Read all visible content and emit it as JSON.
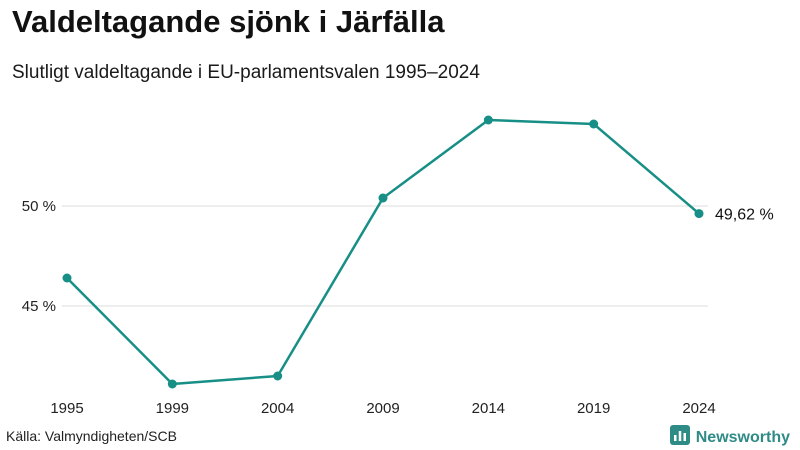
{
  "header": {
    "title": "Valdeltagande sjönk i Järfälla",
    "subtitle": "Slutligt valdeltagande i EU-parlamentsvalen 1995–2024"
  },
  "footer": {
    "source": "Källa: Valmyndigheten/SCB",
    "brand": "Newsworthy",
    "brand_icon": "bar-chart-logo-icon"
  },
  "colors": {
    "line": "#178f86",
    "grid": "#dddddd",
    "brand": "#2e8b85"
  },
  "chart_data": {
    "type": "line",
    "title": "Valdeltagande sjönk i Järfälla",
    "subtitle": "Slutligt valdeltagande i EU-parlamentsvalen 1995–2024",
    "xlabel": "",
    "ylabel": "",
    "categories": [
      "1995",
      "1999",
      "2004",
      "2009",
      "2014",
      "2019",
      "2024"
    ],
    "series": [
      {
        "name": "Valdeltagande (%)",
        "values": [
          46.4,
          41.1,
          41.5,
          50.4,
          54.3,
          54.1,
          49.62
        ]
      }
    ],
    "yticks": [
      {
        "value": 45,
        "label": "45 %"
      },
      {
        "value": 50,
        "label": "50 %"
      }
    ],
    "ylim": [
      40.4,
      56.3
    ],
    "grid": true,
    "end_label": "49,62 %"
  }
}
